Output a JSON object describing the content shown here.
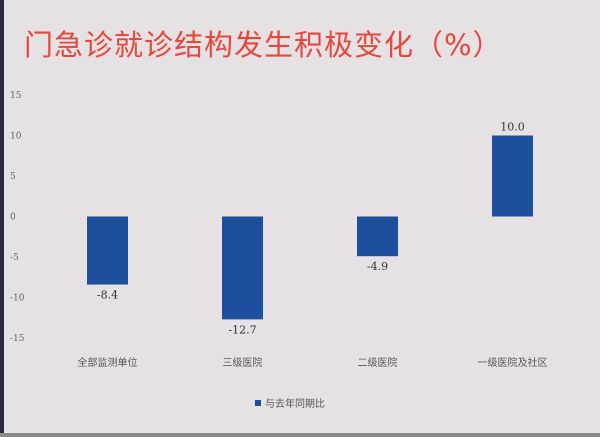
{
  "chart_data": {
    "type": "bar",
    "title": "门急诊就诊结构发生积极变化（%）",
    "categories": [
      "全部监测单位",
      "三级医院",
      "二级医院",
      "一级医院及社区"
    ],
    "series": [
      {
        "name": "与去年同期比",
        "values": [
          -8.4,
          -12.7,
          -4.9,
          10.0
        ],
        "labels": [
          "-8.4",
          "-12.7",
          "-4.9",
          "10.0"
        ]
      }
    ],
    "yticks": [
      15,
      10,
      5,
      0,
      -5,
      -10,
      -15
    ],
    "ylim": [
      -15,
      15
    ],
    "grid": false,
    "legend": "bottom",
    "colors": {
      "bar": "#1e4f9c",
      "title": "#e8463c",
      "background": "#e6e2e4"
    }
  }
}
